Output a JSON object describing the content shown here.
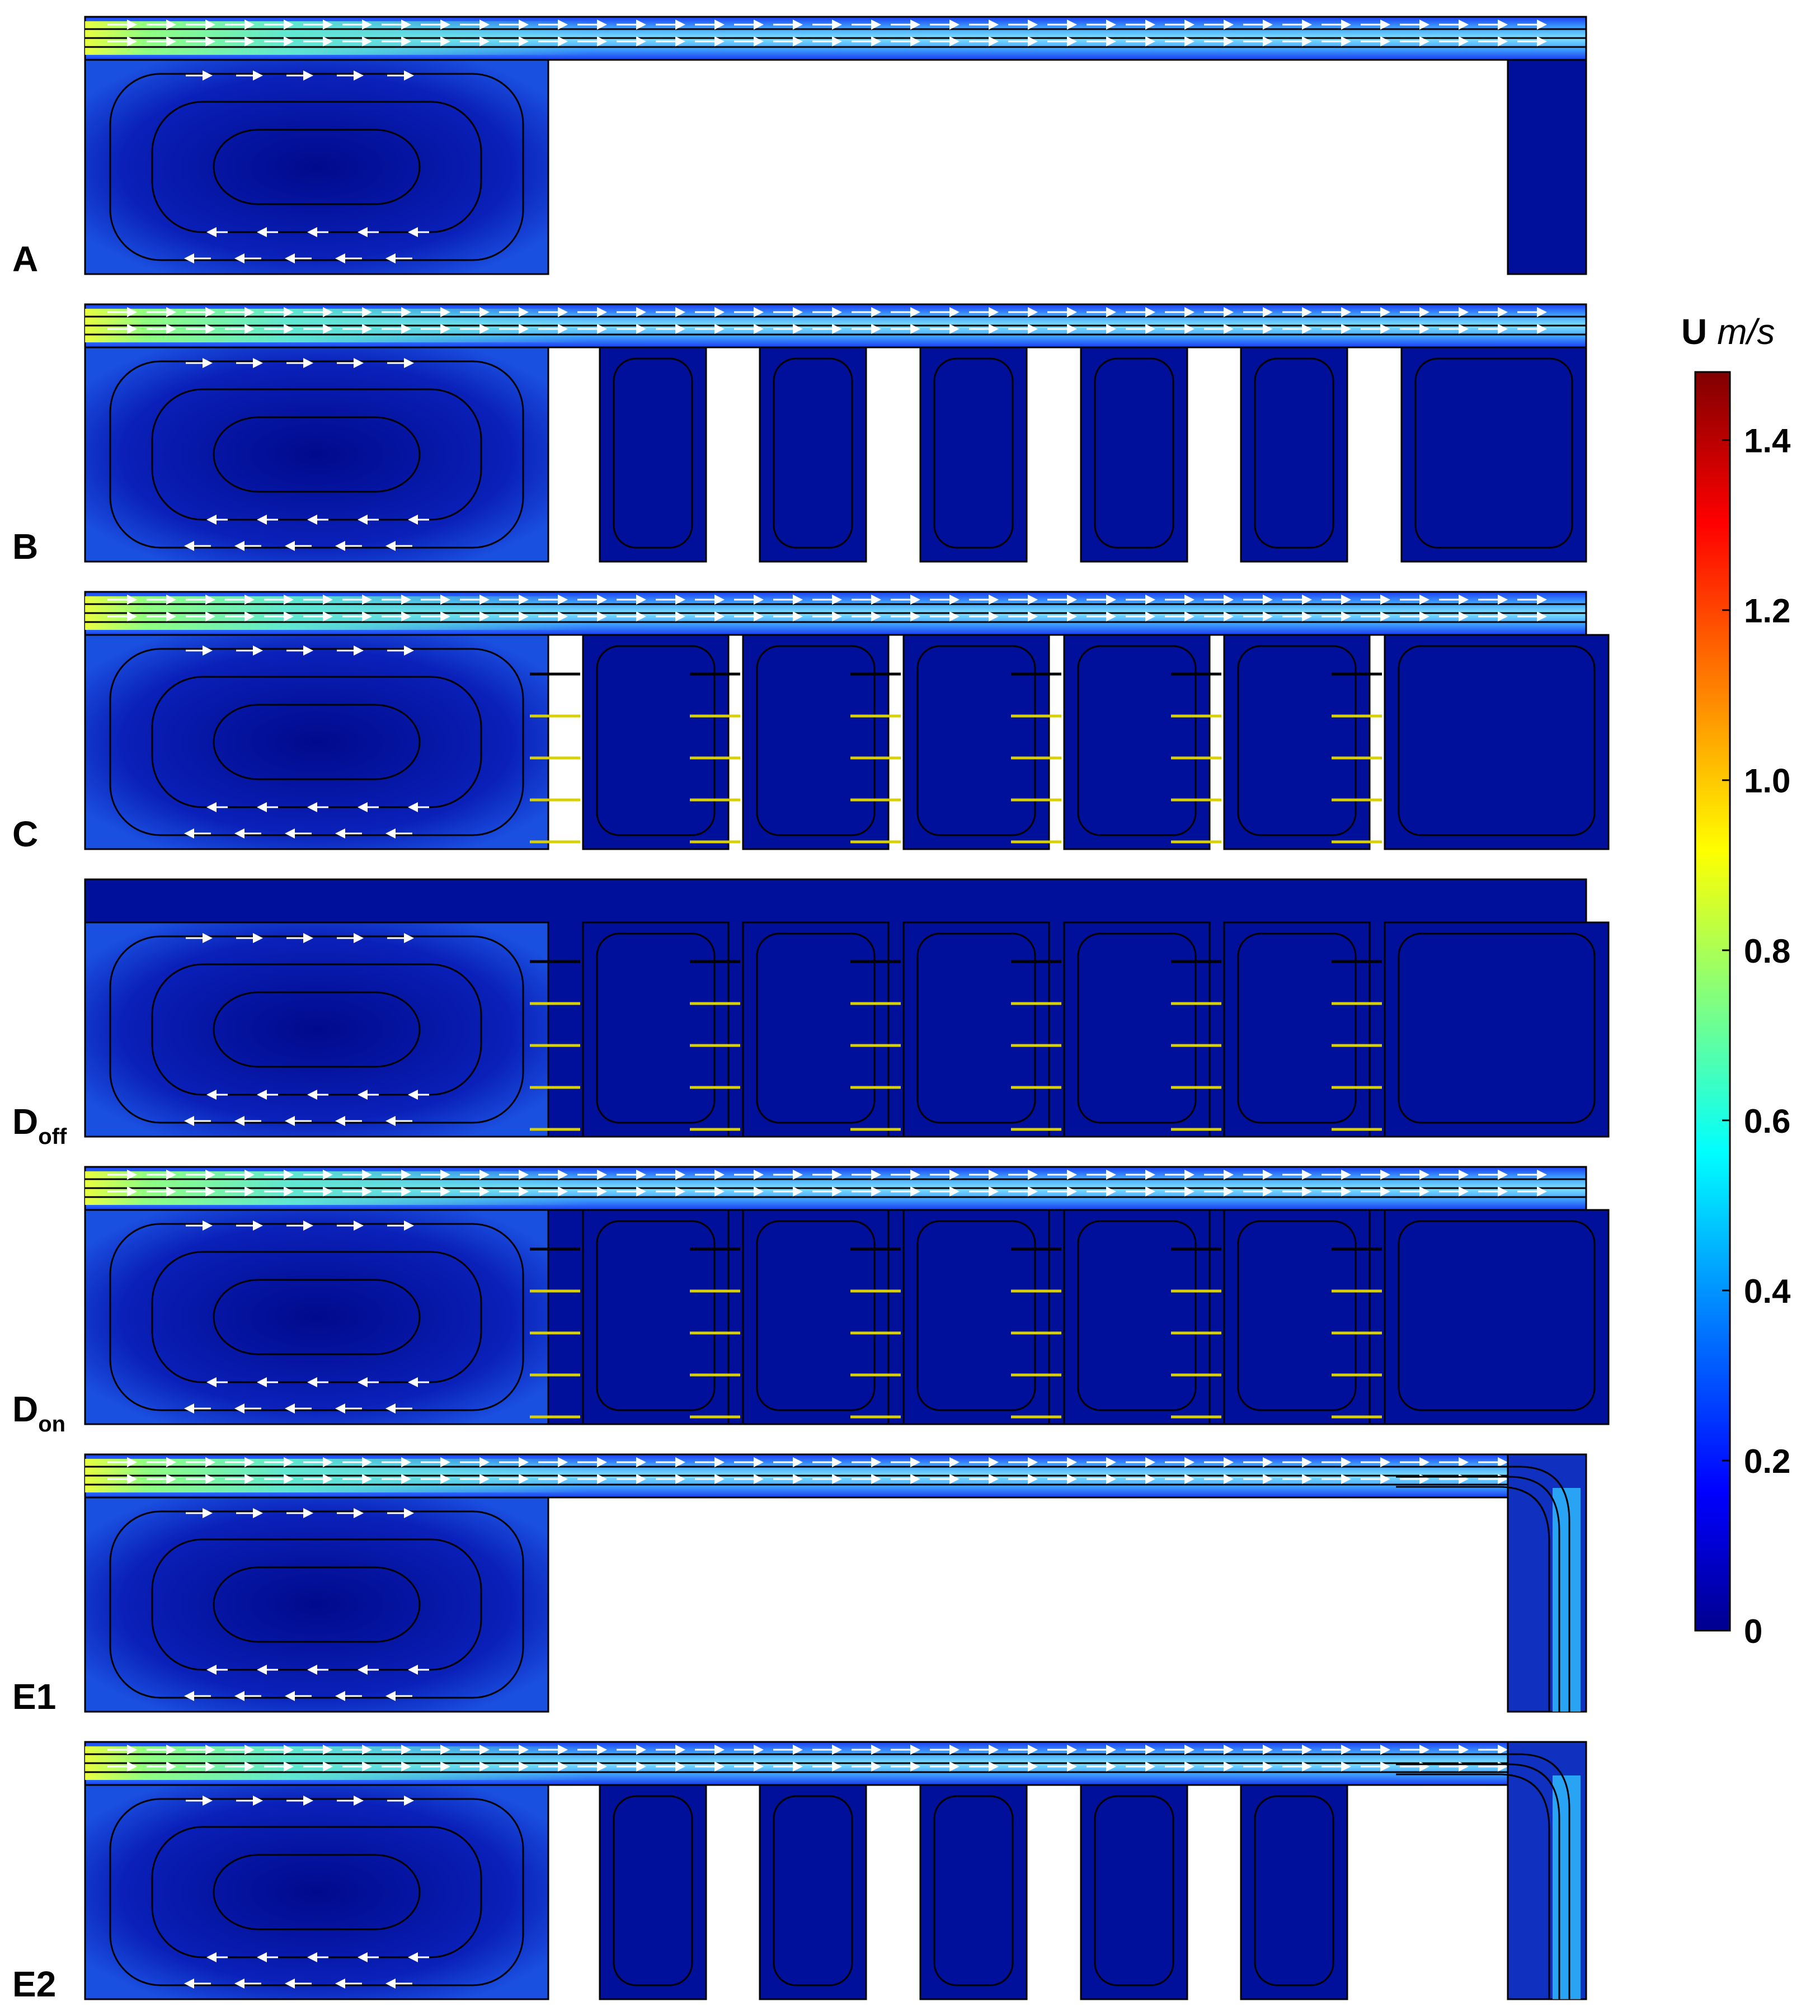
{
  "figure": {
    "panels": [
      {
        "id": "A",
        "label": "A",
        "sub": "",
        "config": "cavity-single-outlet"
      },
      {
        "id": "B",
        "label": "B",
        "sub": "",
        "config": "cavity-chambers"
      },
      {
        "id": "C",
        "label": "C",
        "sub": "",
        "config": "cavity-chambers-baffles"
      },
      {
        "id": "Doff",
        "label": "D",
        "sub": "off",
        "config": "full-closed-off"
      },
      {
        "id": "Don",
        "label": "D",
        "sub": "on",
        "config": "full-closed-on"
      },
      {
        "id": "E1",
        "label": "E1",
        "sub": "",
        "config": "cavity-single-outlet-downflow"
      },
      {
        "id": "E2",
        "label": "E2",
        "sub": "",
        "config": "cavity-chambers-downflow"
      }
    ]
  },
  "colorbar": {
    "title": "U",
    "unit": "m/s",
    "ticks": [
      "0",
      "0.2",
      "0.4",
      "0.6",
      "0.8",
      "1.0",
      "1.2",
      "1.4"
    ],
    "tick_values": [
      0,
      0.2,
      0.4,
      0.6,
      0.8,
      1.0,
      1.2,
      1.4
    ],
    "range": [
      0,
      1.48
    ],
    "colormap": [
      "#00008f",
      "#0000ff",
      "#0080ff",
      "#00ffff",
      "#80ff80",
      "#ffff00",
      "#ff8000",
      "#ff0000",
      "#800000"
    ]
  },
  "colors": {
    "background": "#00108a",
    "jet_core": "#7dd0ff",
    "streamline": "#000000",
    "arrow": "#ffffff"
  }
}
